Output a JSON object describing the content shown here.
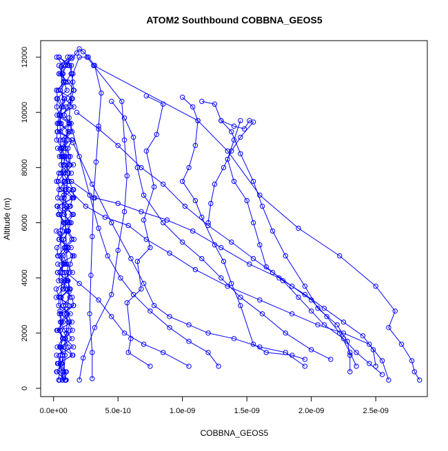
{
  "chart_data": {
    "type": "line",
    "title": "ATOM2 Southbound COBBNA_GEOS5",
    "xlabel": "COBBNA_GEOS5",
    "ylabel": "Altitude (m)",
    "xlim": [
      -1e-10,
      2.9e-09
    ],
    "ylim": [
      -300,
      12600
    ],
    "x_ticks": [
      0,
      5e-10,
      1e-09,
      1.5e-09,
      2e-09,
      2.5e-09
    ],
    "x_tick_labels": [
      "0.0e+00",
      "5.0e-10",
      "1.0e-09",
      "1.5e-09",
      "2.0e-09",
      "2.5e-09"
    ],
    "y_ticks": [
      0,
      2000,
      4000,
      6000,
      8000,
      10000,
      12000
    ],
    "y_tick_labels": [
      "0",
      "2000",
      "4000",
      "6000",
      "8000",
      "10000",
      "12000"
    ],
    "grid": false,
    "marker": "open-circle",
    "series_color": "#0000ff",
    "series": [
      {
        "points": [
          [
            4e-11,
            300
          ],
          [
            6e-11,
            1500
          ],
          [
            5e-11,
            2800
          ],
          [
            7e-11,
            4200
          ],
          [
            5e-11,
            5600
          ],
          [
            8e-11,
            7000
          ],
          [
            6e-11,
            8400
          ],
          [
            5e-11,
            9600
          ],
          [
            7e-11,
            10400
          ],
          [
            6e-11,
            11650
          ],
          [
            1e-10,
            11800
          ],
          [
            1.4e-10,
            11950
          ],
          [
            1.8e-10,
            12150
          ],
          [
            2e-10,
            12300
          ],
          [
            2.3e-10,
            12200
          ],
          [
            2.7e-10,
            12000
          ],
          [
            3.2e-10,
            11700
          ],
          [
            3.7e-10,
            10700
          ],
          [
            3.5e-10,
            9500
          ],
          [
            3.3e-10,
            8200
          ],
          [
            3.1e-10,
            6900
          ],
          [
            3e-10,
            5500
          ],
          [
            2.9e-10,
            4100
          ],
          [
            2.8e-10,
            2700
          ],
          [
            3e-10,
            1300
          ],
          [
            3e-10,
            350
          ]
        ]
      },
      {
        "points": [
          [
            8e-11,
            500
          ],
          [
            1e-10,
            2000
          ],
          [
            1.2e-10,
            3500
          ],
          [
            1e-10,
            5000
          ],
          [
            9e-11,
            6500
          ],
          [
            1.1e-10,
            7800
          ],
          [
            9e-11,
            8900
          ],
          [
            1.2e-10,
            9600
          ],
          [
            1.3e-10,
            10400
          ],
          [
            1.5e-10,
            11400
          ],
          [
            2e-10,
            12000
          ],
          [
            2.6e-10,
            12000
          ],
          [
            3.1e-10,
            11700
          ],
          [
            5.3e-10,
            10400
          ],
          [
            5.5e-10,
            9000
          ],
          [
            5.7e-10,
            7700
          ],
          [
            5.5e-10,
            6400
          ],
          [
            5e-10,
            5000
          ],
          [
            4.5e-10,
            3400
          ],
          [
            3.2e-10,
            2200
          ],
          [
            2.3e-10,
            1100
          ],
          [
            2e-10,
            300
          ]
        ]
      },
      {
        "points": [
          [
            3.1e-10,
            11700
          ],
          [
            1.12e-09,
            9700
          ],
          [
            1.35e-09,
            8600
          ],
          [
            1.6e-09,
            7000
          ],
          [
            1.9e-09,
            5800
          ],
          [
            2.22e-09,
            4800
          ],
          [
            2.5e-09,
            3700
          ],
          [
            2.65e-09,
            2800
          ],
          [
            2.6e-09,
            2200
          ],
          [
            2.7e-09,
            1600
          ],
          [
            2.78e-09,
            1000
          ],
          [
            2.8e-09,
            600
          ],
          [
            2.84e-09,
            300
          ]
        ]
      },
      {
        "points": [
          [
            7.2e-10,
            10600
          ],
          [
            8.5e-10,
            10300
          ],
          [
            8e-10,
            9200
          ],
          [
            7.2e-10,
            8600
          ],
          [
            7.8e-10,
            7300
          ],
          [
            7e-10,
            6100
          ],
          [
            7.5e-10,
            5100
          ],
          [
            6.5e-10,
            4600
          ],
          [
            6.8e-10,
            3600
          ],
          [
            5.7e-10,
            3100
          ],
          [
            6e-10,
            1800
          ],
          [
            5.8e-10,
            1300
          ],
          [
            7.5e-10,
            800
          ]
        ]
      },
      {
        "points": [
          [
            1e-09,
            10550
          ],
          [
            1.08e-09,
            10200
          ],
          [
            1.12e-09,
            9700
          ],
          [
            1.1e-09,
            8800
          ],
          [
            1.05e-09,
            8000
          ],
          [
            1e-09,
            7500
          ],
          [
            1.1e-09,
            6800
          ],
          [
            1.15e-09,
            6200
          ],
          [
            1.25e-09,
            5200
          ],
          [
            1.32e-09,
            4600
          ],
          [
            1.38e-09,
            3800
          ],
          [
            1.45e-09,
            3000
          ],
          [
            1.55e-09,
            1600
          ],
          [
            1.65e-09,
            1300
          ],
          [
            1.85e-09,
            1200
          ],
          [
            1.95e-09,
            1050
          ]
        ]
      },
      {
        "points": [
          [
            1.45e-09,
            9700
          ],
          [
            1.4e-09,
            9000
          ],
          [
            1.35e-09,
            8300
          ],
          [
            1.4e-09,
            7500
          ],
          [
            1.5e-09,
            6800
          ],
          [
            1.55e-09,
            6000
          ],
          [
            1.6e-09,
            5200
          ],
          [
            1.65e-09,
            4400
          ],
          [
            1.78e-09,
            3900
          ],
          [
            1.9e-09,
            3300
          ],
          [
            2e-09,
            2800
          ],
          [
            2.1e-09,
            2300
          ],
          [
            2.25e-09,
            1800
          ],
          [
            2.35e-09,
            1300
          ],
          [
            2.45e-09,
            900
          ],
          [
            2.55e-09,
            500
          ]
        ]
      },
      {
        "points": [
          [
            1.15e-09,
            10400
          ],
          [
            1.25e-09,
            10300
          ],
          [
            1.3e-09,
            9700
          ],
          [
            1.38e-09,
            9300
          ],
          [
            1.45e-09,
            8500
          ],
          [
            1.55e-09,
            7500
          ],
          [
            1.62e-09,
            6600
          ],
          [
            1.7e-09,
            5700
          ],
          [
            1.8e-09,
            4800
          ],
          [
            1.95e-09,
            3700
          ],
          [
            2.05e-09,
            2900
          ],
          [
            2.2e-09,
            2300
          ],
          [
            2.28e-09,
            1700
          ],
          [
            2.3e-09,
            1200
          ],
          [
            2.3e-09,
            600
          ]
        ]
      },
      {
        "points": [
          [
            4.5e-10,
            10400
          ],
          [
            5.5e-10,
            9800
          ],
          [
            6.2e-10,
            9100
          ],
          [
            6.5e-10,
            8000
          ],
          [
            7e-10,
            7000
          ],
          [
            8.5e-10,
            6000
          ],
          [
            1e-09,
            5300
          ],
          [
            1.15e-09,
            4700
          ],
          [
            1.3e-09,
            4000
          ],
          [
            1.45e-09,
            3300
          ],
          [
            1.62e-09,
            2700
          ],
          [
            1.8e-09,
            2000
          ],
          [
            2e-09,
            1400
          ],
          [
            2.15e-09,
            1050
          ]
        ]
      },
      {
        "points": [
          [
            1.2e-10,
            9800
          ],
          [
            2e-10,
            8400
          ],
          [
            2.8e-10,
            7000
          ],
          [
            3.5e-10,
            5800
          ],
          [
            4.2e-10,
            4800
          ],
          [
            5.2e-10,
            4000
          ],
          [
            6.2e-10,
            3400
          ],
          [
            7.5e-10,
            2800
          ],
          [
            9e-10,
            2200
          ],
          [
            1.05e-09,
            1700
          ],
          [
            1.2e-09,
            1300
          ],
          [
            1.28e-09,
            800
          ]
        ]
      },
      {
        "points": [
          [
            1.5e-10,
            8900
          ],
          [
            3e-10,
            7400
          ],
          [
            4.5e-10,
            6000
          ],
          [
            6e-10,
            4700
          ],
          [
            7e-10,
            3800
          ],
          [
            7.8e-10,
            3000
          ],
          [
            9e-10,
            2600
          ],
          [
            1.05e-09,
            2300
          ],
          [
            1.2e-09,
            2000
          ],
          [
            1.4e-09,
            1800
          ],
          [
            1.6e-09,
            1500
          ],
          [
            1.8e-09,
            1300
          ],
          [
            1.95e-09,
            800
          ]
        ]
      },
      {
        "points": [
          [
            1.2e-10,
            7200
          ],
          [
            2.5e-10,
            6600
          ],
          [
            4e-10,
            6200
          ],
          [
            5.8e-10,
            5900
          ],
          [
            7.2e-10,
            5400
          ],
          [
            9e-10,
            4900
          ],
          [
            1.1e-09,
            4300
          ],
          [
            1.35e-09,
            3700
          ],
          [
            1.6e-09,
            3200
          ],
          [
            1.85e-09,
            2700
          ],
          [
            2.05e-09,
            2300
          ],
          [
            2.25e-09,
            2000
          ],
          [
            2.45e-09,
            1600
          ],
          [
            2.55e-09,
            1000
          ],
          [
            2.6e-09,
            300
          ]
        ]
      },
      {
        "points": [
          [
            1e-10,
            4200
          ],
          [
            2e-10,
            3800
          ],
          [
            3.5e-10,
            3200
          ],
          [
            4.5e-10,
            2600
          ],
          [
            5.5e-10,
            2000
          ],
          [
            7e-10,
            1600
          ],
          [
            8.5e-10,
            1300
          ],
          [
            1.05e-09,
            800
          ]
        ]
      },
      {
        "points": [
          [
            1.4e-10,
            7500
          ],
          [
            3.2e-10,
            6900
          ],
          [
            5e-10,
            6700
          ],
          [
            6.8e-10,
            6400
          ],
          [
            8.8e-10,
            6100
          ],
          [
            1.08e-09,
            5700
          ],
          [
            1.3e-09,
            5100
          ],
          [
            1.52e-09,
            4500
          ],
          [
            1.75e-09,
            4000
          ],
          [
            1.95e-09,
            3400
          ],
          [
            2.1e-09,
            2900
          ],
          [
            2.25e-09,
            2400
          ],
          [
            2.4e-09,
            1900
          ],
          [
            2.48e-09,
            1400
          ],
          [
            2.5e-09,
            800
          ]
        ]
      },
      {
        "points": [
          [
            1.8e-10,
            10000
          ],
          [
            3.5e-10,
            9400
          ],
          [
            5e-10,
            8800
          ],
          [
            6.8e-10,
            8000
          ],
          [
            8.5e-10,
            7400
          ],
          [
            1.02e-09,
            6600
          ],
          [
            1.2e-09,
            5900
          ],
          [
            1.38e-09,
            5300
          ],
          [
            1.55e-09,
            4700
          ],
          [
            1.7e-09,
            4200
          ],
          [
            1.85e-09,
            3700
          ],
          [
            2e-09,
            3200
          ],
          [
            2.12e-09,
            2600
          ],
          [
            2.22e-09,
            2000
          ],
          [
            2.3e-09,
            1300
          ],
          [
            2.35e-09,
            800
          ]
        ]
      },
      {
        "points": [
          [
            1.3e-09,
            9700
          ],
          [
            1.4e-09,
            9500
          ],
          [
            1.48e-09,
            9400
          ],
          [
            1.52e-09,
            9700
          ],
          [
            1.55e-09,
            9650
          ],
          [
            1.45e-09,
            9100
          ],
          [
            1.38e-09,
            8600
          ],
          [
            1.32e-09,
            8000
          ],
          [
            1.25e-09,
            7400
          ],
          [
            1.22e-09,
            6700
          ],
          [
            1.2e-09,
            6000
          ]
        ]
      }
    ],
    "dense_cluster": {
      "x_range": [
        2e-11,
        1.6e-10
      ],
      "y_range": [
        300,
        12000
      ],
      "note": ""
    }
  }
}
